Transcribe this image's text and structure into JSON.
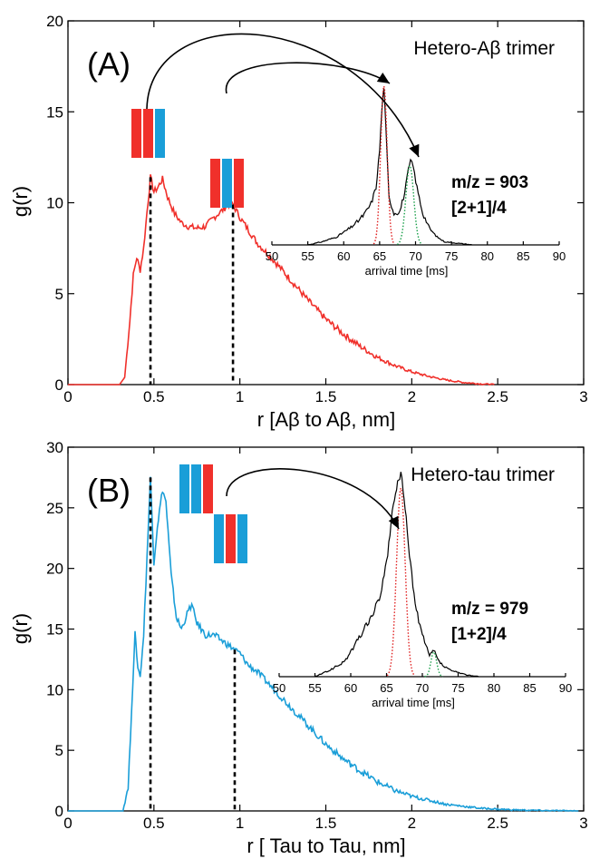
{
  "colors": {
    "red": "#f0302b",
    "blue": "#1a9ed8",
    "black": "#000000",
    "fit_red": "#e02020",
    "fit_green": "#1aa04a"
  },
  "chart_data": [
    {
      "id": "A",
      "type": "line",
      "panel_label": "(A)",
      "title": "Hetero-Aβ trimer",
      "xlabel": "r [Aβ to Aβ, nm]",
      "ylabel": "g(r)",
      "xlim": [
        0,
        3
      ],
      "ylim": [
        0,
        20
      ],
      "xticks": [
        0,
        0.5,
        1,
        1.5,
        2,
        2.5,
        3
      ],
      "xtick_labels": [
        "0",
        "0.5",
        "1",
        "1.5",
        "2",
        "2.5",
        "3"
      ],
      "yticks": [
        0,
        5,
        10,
        15,
        20
      ],
      "ytick_labels": [
        "0",
        "5",
        "10",
        "15",
        "20"
      ],
      "series": [
        {
          "color": "red",
          "x": [
            0,
            0.3,
            0.33,
            0.36,
            0.38,
            0.4,
            0.42,
            0.44,
            0.46,
            0.48,
            0.5,
            0.52,
            0.55,
            0.58,
            0.62,
            0.66,
            0.7,
            0.75,
            0.8,
            0.85,
            0.9,
            0.93,
            0.96,
            1.0,
            1.05,
            1.1,
            1.2,
            1.3,
            1.4,
            1.5,
            1.6,
            1.7,
            1.8,
            1.9,
            2.0,
            2.1,
            2.2,
            2.3,
            2.4,
            2.48
          ],
          "y": [
            0,
            0,
            0.4,
            3.5,
            6.0,
            7.0,
            6.3,
            7.5,
            9.5,
            11.4,
            10.6,
            10.8,
            11.3,
            10.3,
            9.4,
            8.9,
            8.7,
            8.6,
            8.7,
            9.2,
            9.6,
            9.9,
            9.9,
            9.2,
            8.5,
            7.8,
            6.8,
            5.7,
            4.6,
            3.6,
            2.8,
            2.1,
            1.5,
            1.05,
            0.7,
            0.45,
            0.25,
            0.12,
            0.04,
            0.0
          ]
        }
      ],
      "markers": [
        0.48,
        0.96
      ],
      "stacks": [
        {
          "colors": [
            "red",
            "red",
            "blue"
          ]
        },
        {
          "colors": [
            "red",
            "blue",
            "red"
          ]
        }
      ],
      "inset": {
        "xlabel": "arrival time [ms]",
        "xlim": [
          50,
          90
        ],
        "xticks": [
          50,
          55,
          60,
          65,
          70,
          75,
          80,
          85,
          90
        ],
        "xtick_labels": [
          "50",
          "55",
          "60",
          "65",
          "70",
          "75",
          "80",
          "85",
          "90"
        ],
        "ymax": 1.0,
        "t": [
          55,
          57,
          59,
          60,
          61,
          62,
          63,
          63.8,
          64.5,
          65.0,
          65.3,
          65.6,
          65.9,
          66.3,
          67,
          67.8,
          68.5,
          69.0,
          69.3,
          69.7,
          70.2,
          71,
          72,
          73,
          74,
          76,
          78
        ],
        "intensity": [
          0,
          0.02,
          0.05,
          0.08,
          0.11,
          0.15,
          0.2,
          0.26,
          0.36,
          0.6,
          0.85,
          1.0,
          0.7,
          0.3,
          0.2,
          0.21,
          0.33,
          0.47,
          0.53,
          0.49,
          0.36,
          0.2,
          0.1,
          0.05,
          0.02,
          0.01,
          0
        ],
        "fits": [
          {
            "color": "fit_red",
            "center": 65.6,
            "width": 0.45,
            "height": 1.0
          },
          {
            "color": "fit_green",
            "center": 69.2,
            "width": 0.55,
            "height": 0.5
          }
        ],
        "mz": [
          "m/z = 903",
          "[2+1]/4"
        ]
      }
    },
    {
      "id": "B",
      "type": "line",
      "panel_label": "(B)",
      "title": "Hetero-tau trimer",
      "xlabel": "r [ Tau to Tau, nm]",
      "ylabel": "g(r)",
      "xlim": [
        0,
        3
      ],
      "ylim": [
        0,
        30
      ],
      "xticks": [
        0,
        0.5,
        1,
        1.5,
        2,
        2.5,
        3
      ],
      "xtick_labels": [
        "0",
        "0.5",
        "1",
        "1.5",
        "2",
        "2.5",
        "3"
      ],
      "yticks": [
        0,
        5,
        10,
        15,
        20,
        25,
        30
      ],
      "ytick_labels": [
        "0",
        "5",
        "10",
        "15",
        "20",
        "25",
        "30"
      ],
      "series": [
        {
          "color": "blue",
          "x": [
            0,
            0.32,
            0.35,
            0.37,
            0.39,
            0.4,
            0.42,
            0.44,
            0.46,
            0.48,
            0.5,
            0.52,
            0.55,
            0.57,
            0.6,
            0.63,
            0.66,
            0.7,
            0.72,
            0.75,
            0.8,
            0.85,
            0.9,
            0.95,
            1.0,
            1.05,
            1.1,
            1.2,
            1.3,
            1.4,
            1.5,
            1.6,
            1.7,
            1.8,
            1.9,
            2.0,
            2.2,
            2.4,
            2.6,
            2.8,
            2.97
          ],
          "y": [
            0,
            0,
            2.0,
            8.0,
            15.0,
            12.5,
            11.0,
            14.5,
            21.0,
            27.5,
            20.5,
            23.5,
            26.5,
            25.5,
            19.5,
            16.0,
            15.0,
            16.5,
            17.0,
            15.5,
            14.5,
            14.5,
            14.0,
            13.5,
            13.0,
            12.0,
            11.5,
            10.0,
            8.5,
            7.0,
            5.5,
            4.3,
            3.3,
            2.4,
            1.7,
            1.2,
            0.55,
            0.22,
            0.08,
            0.02,
            0.0
          ]
        }
      ],
      "markers": [
        0.48,
        0.97
      ],
      "stacks": [
        {
          "colors": [
            "blue",
            "blue",
            "red"
          ]
        },
        {
          "colors": [
            "blue",
            "red",
            "blue"
          ]
        }
      ],
      "inset": {
        "xlabel": "arrival time [ms]",
        "xlim": [
          50,
          90
        ],
        "xticks": [
          50,
          55,
          60,
          65,
          70,
          75,
          80,
          85,
          90
        ],
        "xtick_labels": [
          "50",
          "55",
          "60",
          "65",
          "70",
          "75",
          "80",
          "85",
          "90"
        ],
        "ymax": 1.0,
        "t": [
          55,
          57,
          59,
          60,
          61,
          62,
          63,
          64,
          65,
          65.8,
          66.4,
          67,
          67.6,
          68.2,
          69,
          70,
          71,
          71.6,
          72.2,
          73,
          74,
          75,
          76,
          78
        ],
        "intensity": [
          0,
          0.03,
          0.07,
          0.12,
          0.18,
          0.24,
          0.3,
          0.38,
          0.55,
          0.8,
          0.92,
          1.0,
          0.82,
          0.6,
          0.35,
          0.2,
          0.1,
          0.13,
          0.08,
          0.05,
          0.03,
          0.02,
          0.01,
          0
        ],
        "fits": [
          {
            "color": "fit_red",
            "center": 67.0,
            "width": 0.6,
            "height": 0.92
          },
          {
            "color": "fit_green",
            "center": 71.6,
            "width": 0.4,
            "height": 0.12
          }
        ],
        "mz": [
          "m/z = 979",
          "[1+2]/4"
        ]
      }
    }
  ]
}
